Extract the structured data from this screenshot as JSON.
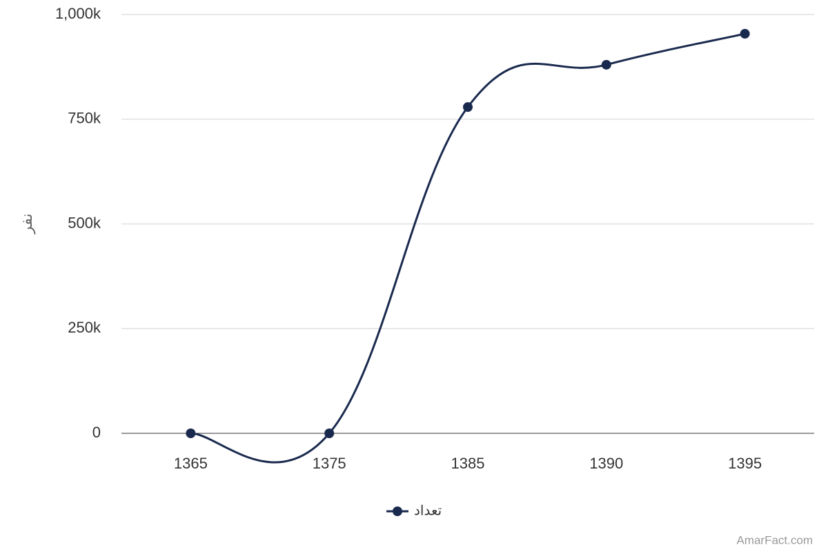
{
  "chart_data": {
    "type": "line",
    "y_label": "نفر",
    "categories": [
      "1365",
      "1375",
      "1385",
      "1390",
      "1395"
    ],
    "series": [
      {
        "name": "تعداد",
        "color": "#1a2a4e",
        "values": [
          0,
          0,
          779000,
          880000,
          954000
        ]
      }
    ],
    "ylim": [
      0,
      1000000
    ],
    "yticks": [
      0,
      {
        "value": 250000,
        "label": "250k"
      },
      {
        "value": 500000,
        "label": "500k"
      },
      {
        "value": 750000,
        "label": "750k"
      },
      {
        "value": 1000000,
        "label": "1,000k"
      }
    ],
    "grid": true,
    "legend": "bottom",
    "credit": "AmarFact.com"
  }
}
